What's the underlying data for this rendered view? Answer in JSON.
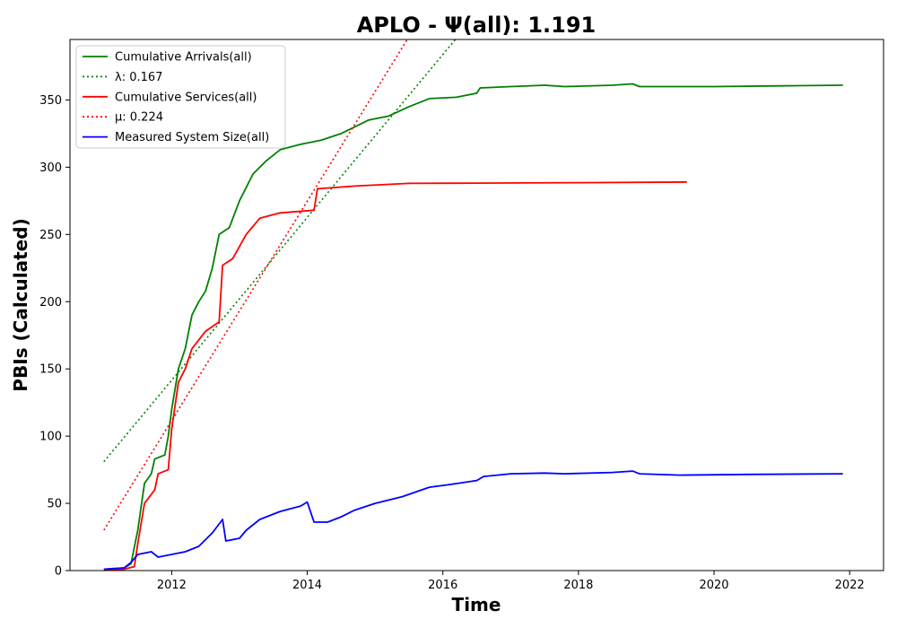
{
  "chart_data": {
    "type": "line",
    "title": "APLO -  Ψ(all): 1.191",
    "xlabel": "Time",
    "ylabel": "PBIs (Calculated)",
    "xlim": [
      2010.5,
      2022.5
    ],
    "ylim": [
      0,
      395
    ],
    "xticks": [
      2012,
      2014,
      2016,
      2018,
      2020,
      2022
    ],
    "yticks": [
      0,
      50,
      100,
      150,
      200,
      250,
      300,
      350
    ],
    "grid": false,
    "legend_position": "top-left",
    "colors": {
      "arrivals": "#008000",
      "services": "#ff0000",
      "system_size": "#0000ff"
    },
    "series": [
      {
        "name": "Cumulative Arrivals(all)",
        "style": "solid",
        "color": "#008000",
        "points": [
          [
            2011.0,
            1
          ],
          [
            2011.3,
            2
          ],
          [
            2011.4,
            5
          ],
          [
            2011.5,
            30
          ],
          [
            2011.6,
            65
          ],
          [
            2011.7,
            72
          ],
          [
            2011.75,
            83
          ],
          [
            2011.9,
            86
          ],
          [
            2011.95,
            100
          ],
          [
            2012.0,
            120
          ],
          [
            2012.1,
            150
          ],
          [
            2012.2,
            165
          ],
          [
            2012.3,
            190
          ],
          [
            2012.4,
            200
          ],
          [
            2012.5,
            208
          ],
          [
            2012.6,
            225
          ],
          [
            2012.7,
            250
          ],
          [
            2012.85,
            255
          ],
          [
            2013.0,
            275
          ],
          [
            2013.2,
            295
          ],
          [
            2013.4,
            305
          ],
          [
            2013.6,
            313
          ],
          [
            2013.9,
            317
          ],
          [
            2014.0,
            318
          ],
          [
            2014.2,
            320
          ],
          [
            2014.5,
            325
          ],
          [
            2014.7,
            330
          ],
          [
            2014.9,
            335
          ],
          [
            2015.2,
            338
          ],
          [
            2015.5,
            345
          ],
          [
            2015.8,
            351
          ],
          [
            2016.2,
            352
          ],
          [
            2016.5,
            355
          ],
          [
            2016.55,
            359
          ],
          [
            2017.0,
            360
          ],
          [
            2017.5,
            361
          ],
          [
            2017.8,
            360
          ],
          [
            2018.5,
            361
          ],
          [
            2018.8,
            362
          ],
          [
            2018.9,
            360
          ],
          [
            2020.0,
            360
          ],
          [
            2021.0,
            360.5
          ],
          [
            2021.9,
            361
          ]
        ]
      },
      {
        "name": "λ: 0.167",
        "style": "dotted",
        "color": "#008000",
        "points": [
          [
            2011.0,
            81
          ],
          [
            2016.3,
            402
          ]
        ]
      },
      {
        "name": "Cumulative Services(all)",
        "style": "solid",
        "color": "#ff0000",
        "points": [
          [
            2011.0,
            0
          ],
          [
            2011.3,
            1
          ],
          [
            2011.45,
            3
          ],
          [
            2011.5,
            20
          ],
          [
            2011.6,
            50
          ],
          [
            2011.75,
            60
          ],
          [
            2011.8,
            72
          ],
          [
            2011.95,
            75
          ],
          [
            2012.0,
            105
          ],
          [
            2012.1,
            140
          ],
          [
            2012.2,
            150
          ],
          [
            2012.3,
            165
          ],
          [
            2012.5,
            178
          ],
          [
            2012.7,
            185
          ],
          [
            2012.75,
            227
          ],
          [
            2012.9,
            232
          ],
          [
            2013.1,
            250
          ],
          [
            2013.3,
            262
          ],
          [
            2013.6,
            266
          ],
          [
            2014.1,
            268
          ],
          [
            2014.15,
            284
          ],
          [
            2014.7,
            286
          ],
          [
            2015.5,
            288
          ],
          [
            2016.5,
            288.2
          ],
          [
            2018.0,
            288.5
          ],
          [
            2019.6,
            289
          ]
        ]
      },
      {
        "name": "μ: 0.224",
        "style": "dotted",
        "color": "#ff0000",
        "points": [
          [
            2011.0,
            30
          ],
          [
            2015.5,
            397
          ]
        ]
      },
      {
        "name": "Measured System Size(all)",
        "style": "solid",
        "color": "#0000ff",
        "points": [
          [
            2011.0,
            1
          ],
          [
            2011.3,
            2
          ],
          [
            2011.4,
            6
          ],
          [
            2011.5,
            12
          ],
          [
            2011.7,
            14
          ],
          [
            2011.8,
            10
          ],
          [
            2012.0,
            12
          ],
          [
            2012.2,
            14
          ],
          [
            2012.4,
            18
          ],
          [
            2012.6,
            28
          ],
          [
            2012.75,
            38
          ],
          [
            2012.8,
            22
          ],
          [
            2013.0,
            24
          ],
          [
            2013.1,
            30
          ],
          [
            2013.3,
            38
          ],
          [
            2013.6,
            44
          ],
          [
            2013.9,
            48
          ],
          [
            2014.0,
            51
          ],
          [
            2014.1,
            36
          ],
          [
            2014.3,
            36
          ],
          [
            2014.5,
            40
          ],
          [
            2014.7,
            45
          ],
          [
            2015.0,
            50
          ],
          [
            2015.4,
            55
          ],
          [
            2015.8,
            62
          ],
          [
            2016.1,
            64
          ],
          [
            2016.5,
            67
          ],
          [
            2016.6,
            70
          ],
          [
            2017.0,
            72
          ],
          [
            2017.5,
            72.5
          ],
          [
            2017.8,
            72
          ],
          [
            2018.5,
            73
          ],
          [
            2018.8,
            74
          ],
          [
            2018.9,
            72
          ],
          [
            2019.5,
            71
          ],
          [
            2020.5,
            71.5
          ],
          [
            2021.9,
            72
          ]
        ]
      }
    ]
  }
}
